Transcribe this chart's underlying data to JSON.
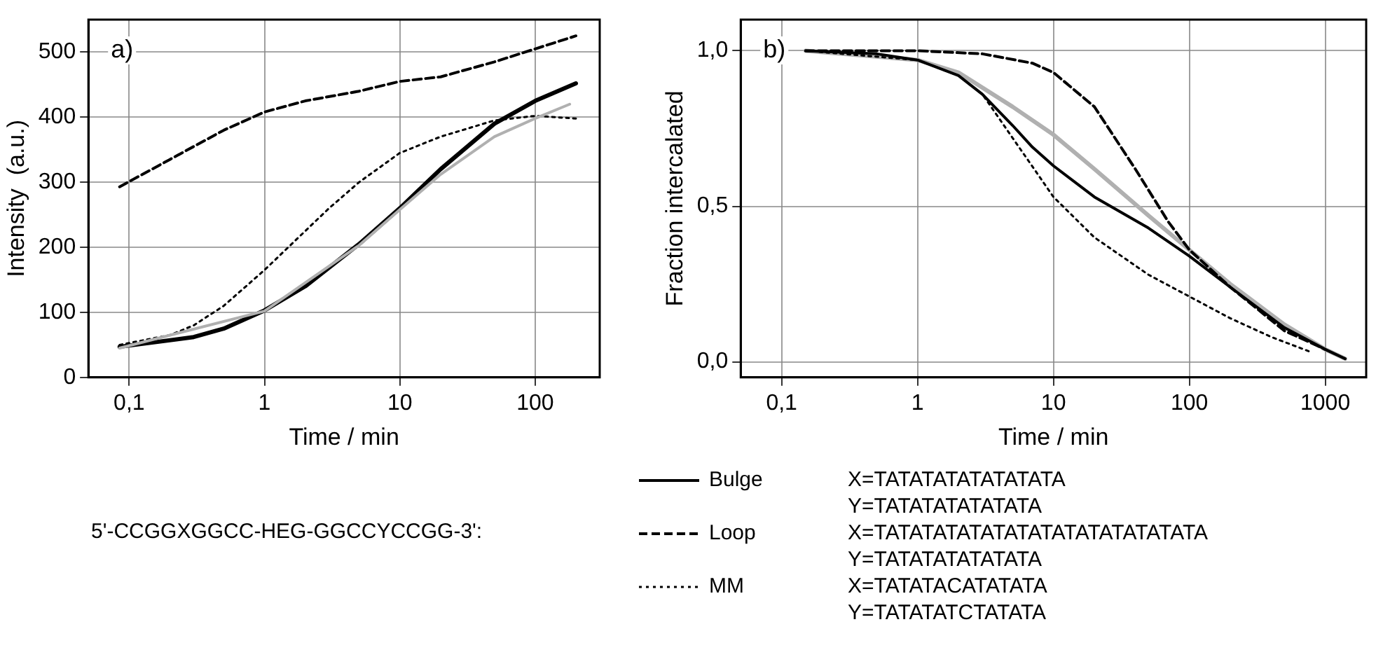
{
  "chart_data": [
    {
      "type": "line",
      "xlabel": "Time / min",
      "ylabel": "Intensity  (a.u.)",
      "log": "x",
      "grid": true,
      "legend": "bottom",
      "marker": "none",
      "xlim": [
        0.05,
        300
      ],
      "xticks": [
        {
          "value": 0.1,
          "label": "0,1"
        },
        1,
        10,
        100
      ],
      "ylim": [
        0,
        550
      ],
      "yticks": [
        0,
        100,
        200,
        300,
        400,
        500
      ],
      "annotations": [
        "a)",
        "5'-CCGGXGGCC-HEG-GGCCYCCGG-3':",
        "X=TATATATATATATATA",
        "Y=TATATATATATATA",
        "X=TATATATATATATATATATATATATATA",
        "Y=TATATATATATATA",
        "X=TATATACATATATA",
        "Y=TATATATCTATATA"
      ],
      "series": [
        {
          "name": "Bulge",
          "color": "#000000",
          "line_style": "solid",
          "x": [
            0.085,
            0.3,
            0.5,
            1,
            2,
            5,
            10,
            20,
            50,
            100,
            200
          ],
          "values": [
            47,
            62,
            75,
            103,
            140,
            205,
            260,
            320,
            390,
            425,
            452
          ]
        },
        {
          "name": "Loop",
          "color": "#000000",
          "line_style": "dashed",
          "x": [
            0.085,
            0.2,
            0.5,
            1,
            2,
            5,
            10,
            20,
            50,
            100,
            200
          ],
          "values": [
            293,
            335,
            380,
            408,
            425,
            440,
            455,
            462,
            485,
            505,
            525
          ]
        },
        {
          "name": "MM",
          "color": "#000000",
          "line_style": "dotted",
          "x": [
            0.085,
            0.2,
            0.3,
            0.5,
            1,
            2,
            3,
            5,
            10,
            20,
            50,
            100,
            200
          ],
          "values": [
            50,
            65,
            80,
            110,
            165,
            225,
            260,
            300,
            345,
            370,
            395,
            402,
            398
          ]
        },
        {
          "color": "#b0b0b0",
          "line_style": "solid",
          "x": [
            0.085,
            1,
            5,
            10,
            20,
            50,
            100,
            180
          ],
          "values": [
            45,
            102,
            203,
            258,
            312,
            370,
            398,
            420
          ]
        }
      ]
    },
    {
      "type": "line",
      "xlabel": "Time / min",
      "ylabel": "Fraction intercalated",
      "log": "x",
      "grid": true,
      "marker": "none",
      "xlim": [
        0.05,
        2000
      ],
      "xticks": [
        {
          "value": 0.1,
          "label": "0,1"
        },
        1,
        10,
        100,
        1000
      ],
      "ylim": [
        -0.05,
        1.1
      ],
      "yticks": [
        {
          "value": 0,
          "label": "0,0"
        },
        {
          "value": 0.5,
          "label": "0,5"
        },
        {
          "value": 1,
          "label": "1,0"
        }
      ],
      "annotations": [
        "b)"
      ],
      "series": [
        {
          "color": "#b0b0b0",
          "line_style": "solid",
          "x": [
            0.15,
            1,
            2,
            5,
            10,
            20,
            50,
            100,
            200,
            500,
            1000,
            1400
          ],
          "values": [
            1,
            0.97,
            0.93,
            0.82,
            0.73,
            0.62,
            0.47,
            0.36,
            0.25,
            0.12,
            0.04,
            0.01
          ]
        },
        {
          "color": "#000000",
          "line_style": "solid",
          "x": [
            0.15,
            0.5,
            1,
            2,
            3,
            5,
            7,
            10,
            20,
            50,
            100,
            200,
            500,
            1000,
            1400
          ],
          "values": [
            1,
            0.99,
            0.97,
            0.92,
            0.86,
            0.76,
            0.69,
            0.63,
            0.53,
            0.43,
            0.34,
            0.24,
            0.11,
            0.04,
            0.01
          ]
        },
        {
          "color": "#000000",
          "line_style": "dashed",
          "x": [
            0.15,
            1,
            3,
            7,
            10,
            20,
            40,
            70,
            100,
            200,
            500,
            1000
          ],
          "values": [
            1,
            1,
            0.99,
            0.96,
            0.93,
            0.82,
            0.62,
            0.45,
            0.36,
            0.24,
            0.1,
            0.04
          ]
        },
        {
          "color": "#000000",
          "line_style": "dotted",
          "x": [
            0.15,
            1,
            2,
            3,
            5,
            10,
            20,
            50,
            100,
            200,
            400,
            800
          ],
          "values": [
            1,
            0.97,
            0.92,
            0.86,
            0.72,
            0.53,
            0.4,
            0.28,
            0.21,
            0.14,
            0.08,
            0.03
          ]
        }
      ]
    }
  ]
}
